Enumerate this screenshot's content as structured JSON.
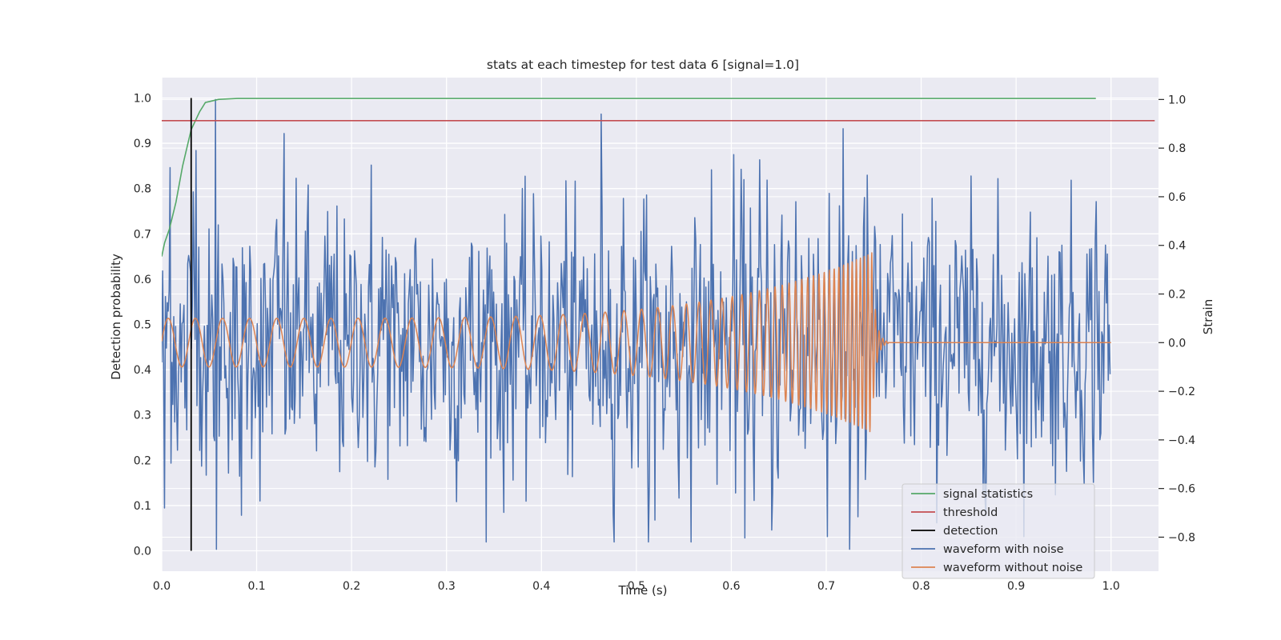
{
  "chart_data": {
    "type": "line",
    "title": "stats at each timestep for test data 6 [signal=1.0]",
    "xlabel": "Time (s)",
    "ylabel": "Detection probability",
    "y2label": "Strain",
    "xlim": [
      0.0,
      1.05
    ],
    "ylim": [
      -0.045,
      1.045
    ],
    "y2lim": [
      -0.94,
      1.09
    ],
    "xticks": [
      "0.0",
      "0.1",
      "0.2",
      "0.3",
      "0.4",
      "0.5",
      "0.6",
      "0.7",
      "0.8",
      "0.9",
      "1.0"
    ],
    "yticks": [
      "0.0",
      "0.1",
      "0.2",
      "0.3",
      "0.4",
      "0.5",
      "0.6",
      "0.7",
      "0.8",
      "0.9",
      "1.0"
    ],
    "y2ticks": [
      "−0.8",
      "−0.6",
      "−0.4",
      "−0.2",
      "0.0",
      "0.2",
      "0.4",
      "0.6",
      "0.8",
      "1.0"
    ],
    "grid": true,
    "legend_position": "lower-right",
    "colors": {
      "signal": "#55a868",
      "threshold": "#c44e52",
      "detection": "#000000",
      "noisy": "#4c72b0",
      "clean": "#dd8452",
      "background": "#eaeaf2",
      "grid": "#ffffff"
    },
    "series": [
      {
        "name": "signal statistics",
        "axis": "left",
        "x": [
          0.0,
          0.003,
          0.008,
          0.015,
          0.022,
          0.031,
          0.04,
          0.046,
          0.052,
          0.06,
          0.08,
          0.2,
          0.4,
          0.6,
          0.8,
          0.984
        ],
        "y": [
          0.65,
          0.68,
          0.71,
          0.77,
          0.85,
          0.93,
          0.97,
          0.99,
          0.993,
          0.997,
          0.999,
          0.999,
          0.999,
          0.999,
          0.999,
          0.999
        ]
      },
      {
        "name": "threshold",
        "axis": "left",
        "x": [
          0.0,
          1.046
        ],
        "y": [
          0.95,
          0.95
        ]
      },
      {
        "name": "detection",
        "axis": "left",
        "x": [
          0.031,
          0.031
        ],
        "y": [
          0.0,
          1.0
        ]
      },
      {
        "name": "waveform with noise",
        "axis": "right",
        "sample_rate_hz": 1024,
        "duration_s": 1.0,
        "std": 0.28,
        "extremes": [
          {
            "x": 0.003,
            "y": -0.68
          },
          {
            "x": 0.009,
            "y": 0.72
          },
          {
            "x": 0.033,
            "y": 0.62
          },
          {
            "x": 0.036,
            "y": 0.79
          },
          {
            "x": 0.057,
            "y": 1.0
          },
          {
            "x": 0.0575,
            "y": -0.85
          },
          {
            "x": 0.084,
            "y": -0.71
          },
          {
            "x": 0.129,
            "y": 0.86
          },
          {
            "x": 0.221,
            "y": 0.73
          },
          {
            "x": 0.463,
            "y": 0.94
          },
          {
            "x": 0.52,
            "y": -0.73
          },
          {
            "x": 0.725,
            "y": -0.85
          },
          {
            "x": 0.984,
            "y": 0.58
          }
        ]
      },
      {
        "name": "waveform without noise",
        "axis": "right",
        "chirp": {
          "start_amplitude": 0.1,
          "peak_amplitude": 0.37,
          "start_frequency_hz": 35,
          "peak_frequency_hz": 260,
          "merger_time_s": 0.748,
          "ringdown_end_s": 0.765,
          "end_time_s": 1.0
        }
      }
    ],
    "legend": [
      "signal statistics",
      "threshold",
      "detection",
      "waveform with noise",
      "waveform without noise"
    ]
  }
}
